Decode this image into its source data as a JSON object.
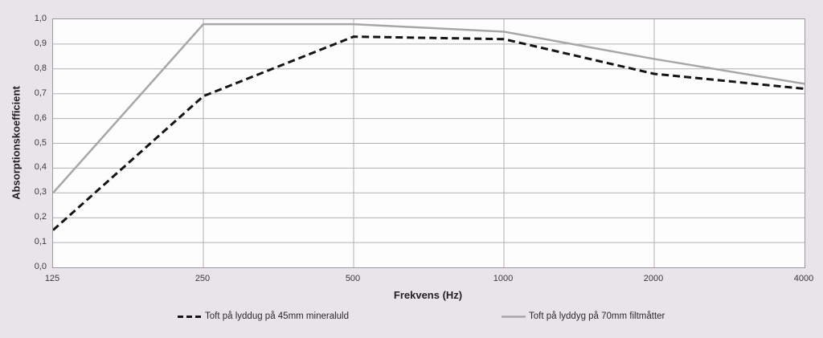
{
  "chart_data": {
    "type": "line",
    "title": "",
    "xlabel": "Frekvens (Hz)",
    "ylabel": "Absorptionskoefficient",
    "x": [
      125,
      250,
      500,
      1000,
      2000,
      4000
    ],
    "x_tick_labels": [
      "125",
      "250",
      "500",
      "1000",
      "2000",
      "4000"
    ],
    "x_axis_scale": "log-category (equal spacing per octave)",
    "ylim": [
      0.0,
      1.0
    ],
    "y_ticks": [
      0.0,
      0.1,
      0.2,
      0.3,
      0.4,
      0.5,
      0.6,
      0.7,
      0.8,
      0.9,
      1.0
    ],
    "y_tick_labels": [
      "0,0",
      "0,1",
      "0,2",
      "0,3",
      "0,4",
      "0,5",
      "0,6",
      "0,7",
      "0,8",
      "0,9",
      "1,0"
    ],
    "grid": true,
    "legend_position": "bottom",
    "series": [
      {
        "name": "Toft på lyddug på 45mm mineraluld",
        "values": [
          0.15,
          0.69,
          0.93,
          0.92,
          0.78,
          0.72
        ],
        "color": "#141414",
        "line_style": "dashed"
      },
      {
        "name": "Toft på lyddyg på 70mm filtmåtter",
        "values": [
          0.3,
          0.98,
          0.98,
          0.95,
          0.84,
          0.74
        ],
        "color": "#a7a7a7",
        "line_style": "solid"
      }
    ]
  },
  "colors": {
    "page_background": "#e9e4ea",
    "plot_background": "#fdfdfe",
    "gridline": "#b2afb4",
    "plot_frame": "#9b989e",
    "tick_text": "#3a3a3a",
    "title_text": "#1f1f1f"
  }
}
